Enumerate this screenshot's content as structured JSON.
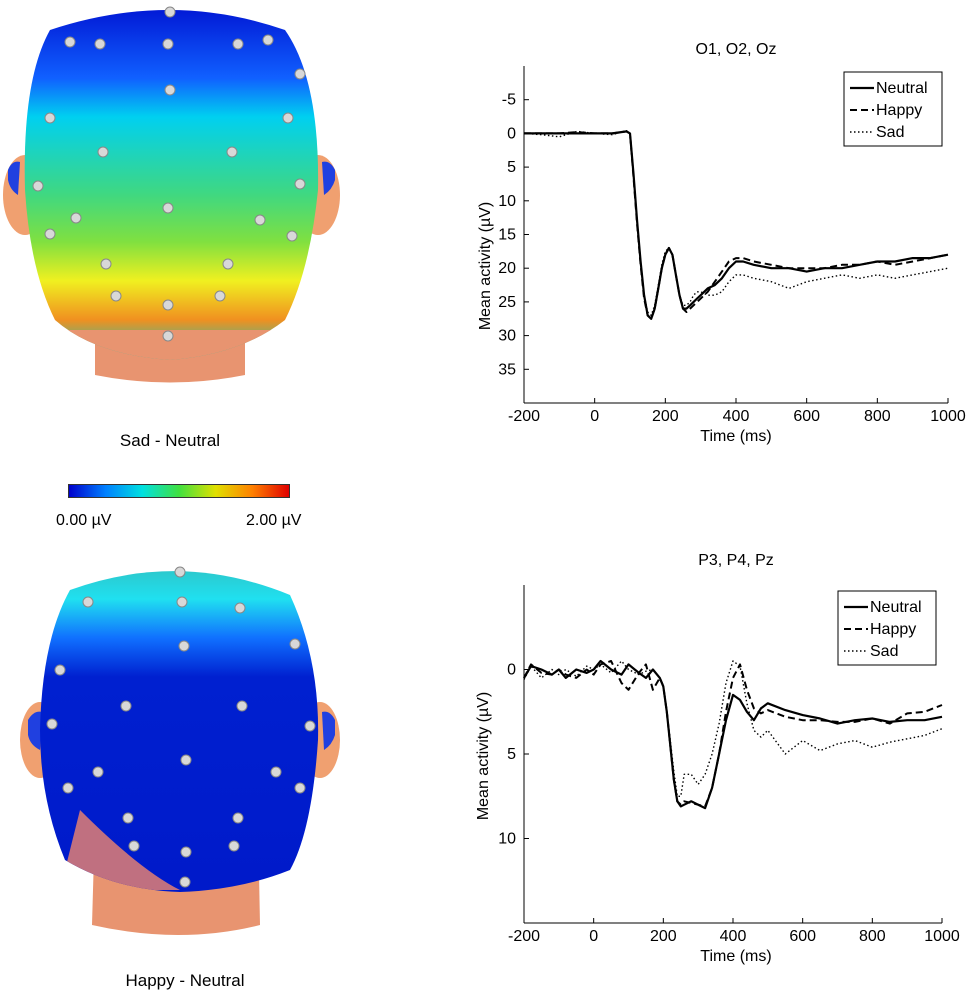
{
  "topomaps": [
    {
      "label": "Sad - Neutral",
      "map": "posterior-warm"
    },
    {
      "label": "Happy - Neutral",
      "map": "mostly-blue"
    }
  ],
  "colorbar": {
    "min_label": "0.00 µV",
    "max_label": "2.00 µV",
    "colors": [
      "#0000cc",
      "#0080ff",
      "#00e0e0",
      "#40e040",
      "#e0e000",
      "#ff8000",
      "#e00000"
    ]
  },
  "chart_data": [
    {
      "type": "line",
      "title": "O1, O2, Oz",
      "xlabel": "Time (ms)",
      "ylabel": "Mean activity (µV)",
      "xlim": [
        -200,
        1000
      ],
      "ylim": [
        -10,
        40
      ],
      "y_inverted": true,
      "xticks": [
        -200,
        0,
        200,
        400,
        600,
        800,
        1000
      ],
      "yticks": [
        -5,
        0,
        5,
        10,
        15,
        20,
        25,
        30,
        35
      ],
      "legend_position": "top-right",
      "series": [
        {
          "name": "Neutral",
          "style": "solid",
          "x": [
            -200,
            -150,
            -100,
            -50,
            0,
            50,
            90,
            100,
            110,
            120,
            130,
            140,
            150,
            160,
            170,
            180,
            190,
            200,
            210,
            220,
            230,
            240,
            250,
            260,
            270,
            280,
            290,
            300,
            320,
            340,
            360,
            380,
            400,
            420,
            450,
            500,
            550,
            600,
            650,
            700,
            750,
            800,
            850,
            900,
            950,
            1000
          ],
          "y": [
            0,
            0,
            0,
            0,
            0,
            0,
            -0.3,
            0,
            6,
            13,
            19,
            24,
            27,
            27.5,
            26,
            23,
            20,
            18,
            17,
            18,
            21,
            24,
            26,
            26,
            25.5,
            25,
            24.5,
            24,
            23,
            22.5,
            21.5,
            20,
            19,
            19,
            19.5,
            20,
            20,
            20.5,
            20,
            20,
            19.5,
            19,
            19,
            18.5,
            18.5,
            18
          ]
        },
        {
          "name": "Happy",
          "style": "dashed",
          "x": [
            -200,
            -150,
            -100,
            -50,
            0,
            50,
            90,
            100,
            110,
            120,
            130,
            140,
            150,
            160,
            170,
            180,
            190,
            200,
            210,
            220,
            230,
            240,
            250,
            260,
            270,
            280,
            290,
            300,
            320,
            340,
            360,
            380,
            400,
            420,
            450,
            500,
            550,
            600,
            650,
            700,
            750,
            800,
            850,
            900,
            950,
            1000
          ],
          "y": [
            0,
            0,
            0,
            -0.2,
            0,
            0,
            -0.3,
            0,
            6.5,
            13.5,
            19.5,
            24.5,
            27,
            27.5,
            26,
            23,
            20,
            18,
            17,
            18,
            21,
            24,
            26,
            26.5,
            26,
            25.5,
            25,
            24.5,
            23.5,
            22,
            20.5,
            19,
            18.5,
            18.5,
            19,
            19.5,
            20,
            20,
            20,
            19.5,
            19.5,
            19,
            19.5,
            19,
            18.5,
            18
          ]
        },
        {
          "name": "Sad",
          "style": "dotted",
          "x": [
            -200,
            -150,
            -100,
            -50,
            0,
            50,
            90,
            100,
            110,
            120,
            130,
            140,
            150,
            160,
            170,
            180,
            190,
            200,
            210,
            220,
            230,
            240,
            250,
            260,
            270,
            280,
            290,
            300,
            320,
            340,
            360,
            380,
            400,
            420,
            450,
            500,
            550,
            600,
            650,
            700,
            750,
            800,
            850,
            900,
            950,
            1000
          ],
          "y": [
            0,
            0.2,
            0.5,
            -0.3,
            0,
            0.2,
            -0.4,
            0,
            6,
            13,
            19,
            24,
            26.5,
            27,
            25.5,
            22.5,
            19.5,
            17.5,
            17,
            18,
            21,
            24,
            25.5,
            25.5,
            25,
            24,
            23.5,
            23.5,
            24,
            24,
            23.5,
            22,
            21,
            21,
            21.5,
            22,
            23,
            22,
            21.5,
            21,
            21.5,
            21,
            21.5,
            21,
            20.5,
            20
          ]
        }
      ]
    },
    {
      "type": "line",
      "title": "P3, P4, Pz",
      "xlabel": "Time (ms)",
      "ylabel": "Mean activity (µV)",
      "xlim": [
        -200,
        1000
      ],
      "ylim": [
        -5,
        15
      ],
      "y_inverted": true,
      "xticks": [
        -200,
        0,
        200,
        400,
        600,
        800,
        1000
      ],
      "yticks": [
        0,
        5,
        10
      ],
      "legend_position": "top-right",
      "series": [
        {
          "name": "Neutral",
          "style": "solid",
          "x": [
            -200,
            -180,
            -150,
            -120,
            -100,
            -80,
            -50,
            -20,
            0,
            20,
            50,
            80,
            100,
            130,
            150,
            170,
            190,
            200,
            210,
            220,
            230,
            240,
            250,
            260,
            280,
            300,
            320,
            340,
            360,
            380,
            400,
            420,
            440,
            460,
            480,
            500,
            550,
            600,
            650,
            700,
            750,
            800,
            850,
            900,
            950,
            1000
          ],
          "y": [
            0.5,
            -0.2,
            0,
            0.3,
            0,
            0.5,
            0,
            0.2,
            0,
            -0.5,
            0,
            0.3,
            -0.3,
            0.2,
            0.5,
            0,
            0.5,
            1,
            2.5,
            4.5,
            6.5,
            7.8,
            8.1,
            8,
            7.8,
            8,
            8.2,
            7,
            5,
            3,
            1.5,
            1.8,
            2.5,
            3,
            2.3,
            2,
            2.4,
            2.7,
            2.9,
            3.2,
            3,
            2.9,
            3.1,
            3,
            3,
            2.8
          ]
        },
        {
          "name": "Happy",
          "style": "dashed",
          "x": [
            -200,
            -180,
            -150,
            -120,
            -100,
            -80,
            -50,
            -20,
            0,
            20,
            50,
            80,
            100,
            130,
            150,
            170,
            190,
            200,
            210,
            220,
            230,
            240,
            250,
            260,
            280,
            300,
            320,
            340,
            360,
            380,
            400,
            420,
            440,
            460,
            480,
            500,
            550,
            600,
            650,
            700,
            750,
            800,
            850,
            900,
            950,
            1000
          ],
          "y": [
            0.5,
            -0.3,
            0.2,
            0.3,
            0,
            0.3,
            0.5,
            0,
            0.3,
            -0.3,
            -0.5,
            0.8,
            1.2,
            0.2,
            -0.3,
            1.2,
            0.5,
            1,
            2.5,
            4.5,
            6.5,
            7.8,
            8,
            7.8,
            7.9,
            8,
            8.1,
            7,
            5,
            2.5,
            0.5,
            -0.3,
            1.2,
            2.3,
            2.6,
            2.4,
            2.8,
            3,
            3,
            3.1,
            3.1,
            2.9,
            3.2,
            2.6,
            2.5,
            2.1
          ]
        },
        {
          "name": "Sad",
          "style": "dotted",
          "x": [
            -200,
            -180,
            -150,
            -120,
            -100,
            -80,
            -50,
            -20,
            0,
            20,
            50,
            80,
            100,
            130,
            150,
            170,
            190,
            200,
            210,
            220,
            230,
            240,
            250,
            260,
            280,
            300,
            320,
            340,
            360,
            380,
            400,
            420,
            440,
            460,
            480,
            500,
            550,
            600,
            650,
            700,
            750,
            800,
            850,
            900,
            950,
            1000
          ],
          "y": [
            0.6,
            -0.2,
            0.5,
            0,
            0.3,
            0,
            0.4,
            -0.2,
            0,
            -0.3,
            0.2,
            -0.5,
            0,
            0.3,
            0.1,
            0,
            0.5,
            1,
            2.4,
            4.2,
            6,
            7.5,
            7.5,
            6.2,
            6.2,
            6.8,
            6.2,
            5,
            3.2,
            0.8,
            -0.5,
            -0.2,
            2,
            3.6,
            4,
            3.6,
            5,
            4.2,
            4.8,
            4.4,
            4.2,
            4.6,
            4.3,
            4.1,
            3.9,
            3.5
          ]
        }
      ]
    }
  ]
}
